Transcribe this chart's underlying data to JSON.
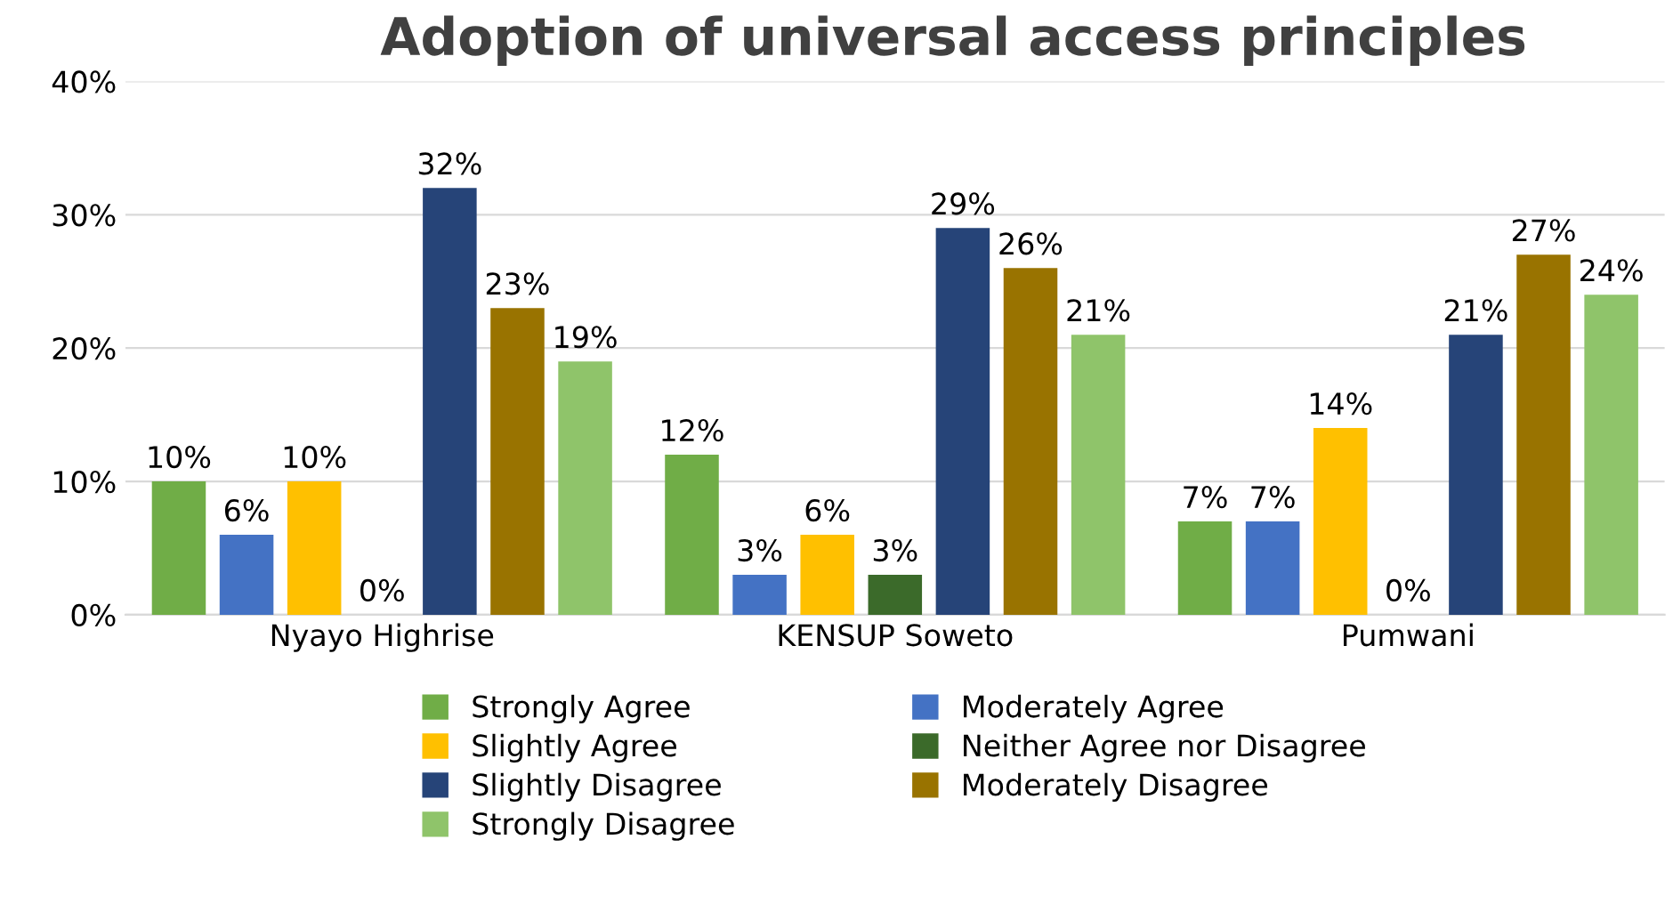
{
  "chart_data": {
    "type": "bar",
    "title": "Adoption of universal access principles",
    "categories": [
      "Nyayo Highrise",
      "KENSUP Soweto",
      "Pumwani"
    ],
    "series": [
      {
        "name": "Strongly Agree",
        "color": "#70ad47",
        "values": [
          10,
          12,
          7
        ],
        "value_labels": [
          "10%",
          "12%",
          "7%"
        ]
      },
      {
        "name": "Moderately Agree",
        "color": "#4472c4",
        "values": [
          6,
          3,
          7
        ],
        "value_labels": [
          "6%",
          "3%",
          "7%"
        ]
      },
      {
        "name": "Slightly Agree",
        "color": "#ffc000",
        "values": [
          10,
          6,
          14
        ],
        "value_labels": [
          "10%",
          "6%",
          "14%"
        ]
      },
      {
        "name": "Neither Agree nor Disagree",
        "color": "#3b6a2a",
        "values": [
          0,
          3,
          0
        ],
        "value_labels": [
          "0%",
          "3%",
          "0%"
        ]
      },
      {
        "name": "Slightly Disagree",
        "color": "#264478",
        "values": [
          32,
          29,
          21
        ],
        "value_labels": [
          "32%",
          "29%",
          "21%"
        ]
      },
      {
        "name": "Moderately Disagree",
        "color": "#997300",
        "values": [
          23,
          26,
          27
        ],
        "value_labels": [
          "23%",
          "26%",
          "27%"
        ]
      },
      {
        "name": "Strongly Disagree",
        "color": "#8fc46a",
        "values": [
          19,
          21,
          24
        ],
        "value_labels": [
          "19%",
          "21%",
          "24%"
        ]
      }
    ],
    "ylim": [
      0,
      40
    ],
    "yticks": [
      {
        "value": 0,
        "label": "0%"
      },
      {
        "value": 10,
        "label": "10%"
      },
      {
        "value": 20,
        "label": "20%"
      },
      {
        "value": 30,
        "label": "30%"
      },
      {
        "value": 40,
        "label": "40%"
      }
    ],
    "grid": "y",
    "legend": "bottom"
  }
}
